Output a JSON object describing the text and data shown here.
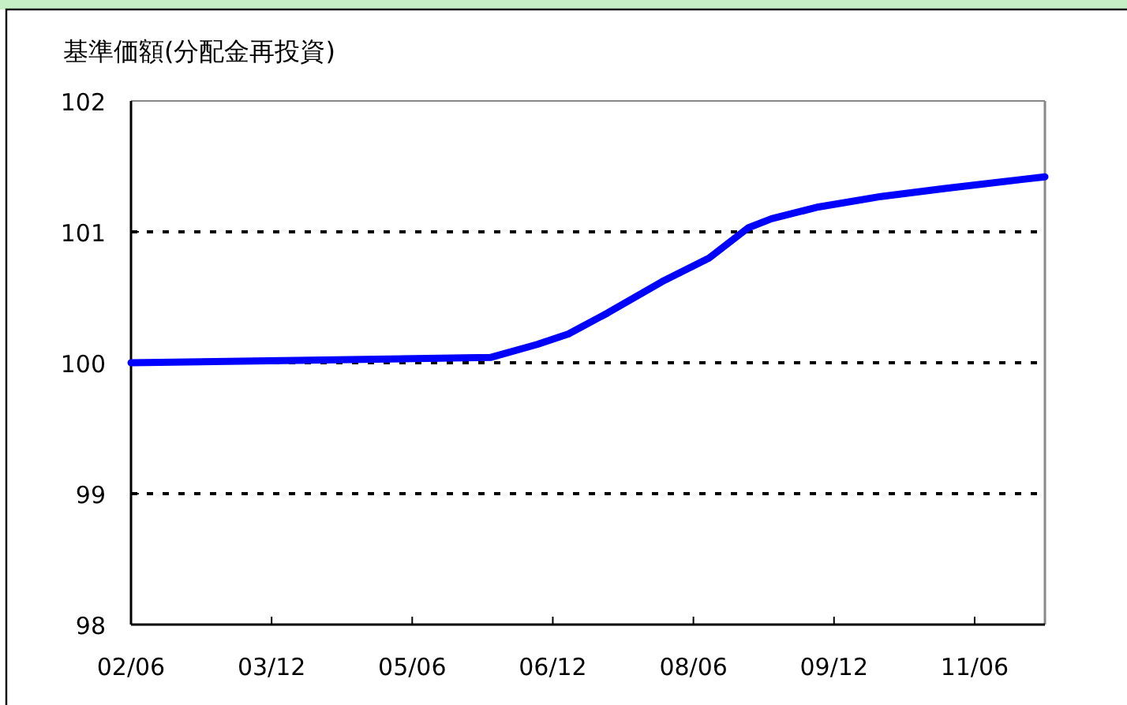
{
  "chart_data": {
    "type": "line",
    "title": "基準価額(分配金再投資)",
    "x": [
      "2002-06",
      "2004-05",
      "2006-04",
      "2006-10",
      "2007-02",
      "2007-07",
      "2008-02",
      "2008-08",
      "2009-01",
      "2009-04",
      "2009-10",
      "2010-06",
      "2011-02",
      "2011-12",
      "2012-03"
    ],
    "series": [
      {
        "color": "#0000ff",
        "values": [
          100.0,
          100.02,
          100.04,
          100.14,
          100.22,
          100.38,
          100.62,
          100.8,
          101.03,
          101.1,
          101.19,
          101.27,
          101.33,
          101.4,
          101.42
        ]
      }
    ],
    "xlim": [
      "2002-06",
      "2012-03"
    ],
    "xticks": [
      {
        "value": "2002-06",
        "label": "02/06"
      },
      {
        "value": "2003-12",
        "label": "03/12"
      },
      {
        "value": "2005-06",
        "label": "05/06"
      },
      {
        "value": "2006-12",
        "label": "06/12"
      },
      {
        "value": "2008-06",
        "label": "08/06"
      },
      {
        "value": "2009-12",
        "label": "09/12"
      },
      {
        "value": "2011-06",
        "label": "11/06"
      }
    ],
    "ylim": [
      98,
      102
    ],
    "yticks": [
      98,
      99,
      100,
      101,
      102
    ],
    "grid": "y",
    "marker": "none",
    "line_style": "solid"
  }
}
